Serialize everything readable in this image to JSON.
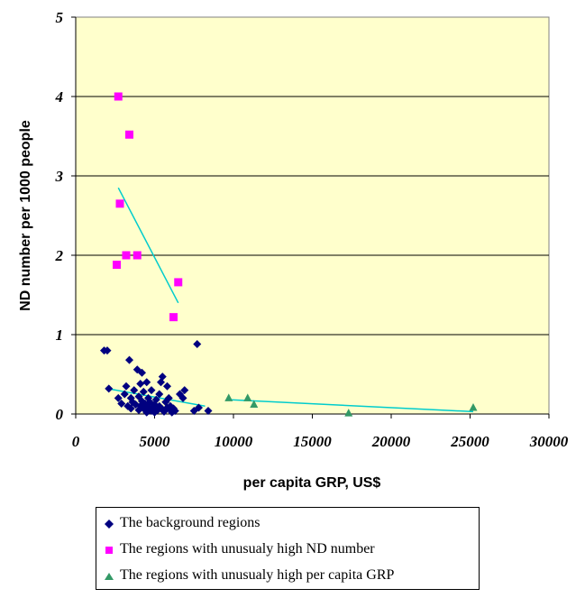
{
  "chart_data": {
    "type": "scatter",
    "title": "",
    "xlabel": "per capita GRP, US$",
    "ylabel": "ND number per 1000 people",
    "xlim": [
      0,
      30000
    ],
    "ylim": [
      0,
      5
    ],
    "x_ticks": [
      "0",
      "5000",
      "10000",
      "15000",
      "20000",
      "25000",
      "30000"
    ],
    "y_ticks": [
      "0",
      "1",
      "2",
      "3",
      "4",
      "5"
    ],
    "plot_background": "#ffffcc",
    "grid": "horizontal",
    "legend_position": "bottom",
    "series": [
      {
        "name": "The background regions",
        "marker": "diamond",
        "color": "#000080",
        "points": [
          [
            1800,
            0.8
          ],
          [
            2000,
            0.8
          ],
          [
            2100,
            0.32
          ],
          [
            2700,
            0.2
          ],
          [
            2900,
            0.13
          ],
          [
            3100,
            0.25
          ],
          [
            3200,
            0.35
          ],
          [
            3300,
            0.1
          ],
          [
            3400,
            0.68
          ],
          [
            3500,
            0.07
          ],
          [
            3500,
            0.2
          ],
          [
            3600,
            0.15
          ],
          [
            3700,
            0.3
          ],
          [
            3800,
            0.12
          ],
          [
            3900,
            0.56
          ],
          [
            4000,
            0.05
          ],
          [
            4000,
            0.22
          ],
          [
            4100,
            0.38
          ],
          [
            4100,
            0.1
          ],
          [
            4200,
            0.52
          ],
          [
            4200,
            0.16
          ],
          [
            4300,
            0.08
          ],
          [
            4300,
            0.28
          ],
          [
            4400,
            0.05
          ],
          [
            4400,
            0.13
          ],
          [
            4500,
            0.4
          ],
          [
            4500,
            0.02
          ],
          [
            4600,
            0.1
          ],
          [
            4600,
            0.2
          ],
          [
            4700,
            0.06
          ],
          [
            4700,
            0.15
          ],
          [
            4800,
            0.04
          ],
          [
            4800,
            0.3
          ],
          [
            4900,
            0.08
          ],
          [
            5000,
            0.12
          ],
          [
            5000,
            0.02
          ],
          [
            5100,
            0.18
          ],
          [
            5200,
            0.05
          ],
          [
            5300,
            0.25
          ],
          [
            5300,
            0.1
          ],
          [
            5400,
            0.4
          ],
          [
            5500,
            0.06
          ],
          [
            5500,
            0.47
          ],
          [
            5600,
            0.03
          ],
          [
            5700,
            0.15
          ],
          [
            5800,
            0.35
          ],
          [
            5800,
            0.08
          ],
          [
            5900,
            0.2
          ],
          [
            6000,
            0.05
          ],
          [
            6000,
            0.1
          ],
          [
            6100,
            0.02
          ],
          [
            6200,
            0.07
          ],
          [
            6300,
            0.04
          ],
          [
            6600,
            0.25
          ],
          [
            6800,
            0.2
          ],
          [
            6900,
            0.3
          ],
          [
            7500,
            0.04
          ],
          [
            7700,
            0.88
          ],
          [
            7800,
            0.08
          ],
          [
            8400,
            0.04
          ]
        ],
        "trendline": [
          [
            2000,
            0.32
          ],
          [
            8200,
            0.1
          ]
        ]
      },
      {
        "name": "The regions with unusualy high ND number",
        "marker": "square",
        "color": "#ff00ff",
        "points": [
          [
            2700,
            4.0
          ],
          [
            3400,
            3.52
          ],
          [
            2800,
            2.65
          ],
          [
            3200,
            2.0
          ],
          [
            3900,
            2.0
          ],
          [
            2600,
            1.88
          ],
          [
            6500,
            1.66
          ],
          [
            6200,
            1.22
          ]
        ],
        "trendline": [
          [
            2700,
            2.85
          ],
          [
            6500,
            1.4
          ]
        ]
      },
      {
        "name": "The regions with unusualy high per capita GRP",
        "marker": "triangle",
        "color": "#339966",
        "points": [
          [
            9700,
            0.2
          ],
          [
            10900,
            0.2
          ],
          [
            11300,
            0.12
          ],
          [
            17300,
            0.01
          ],
          [
            25200,
            0.08
          ]
        ],
        "trendline": [
          [
            9700,
            0.18
          ],
          [
            25200,
            0.03
          ]
        ]
      }
    ],
    "trendline_color": "#00cccc"
  }
}
